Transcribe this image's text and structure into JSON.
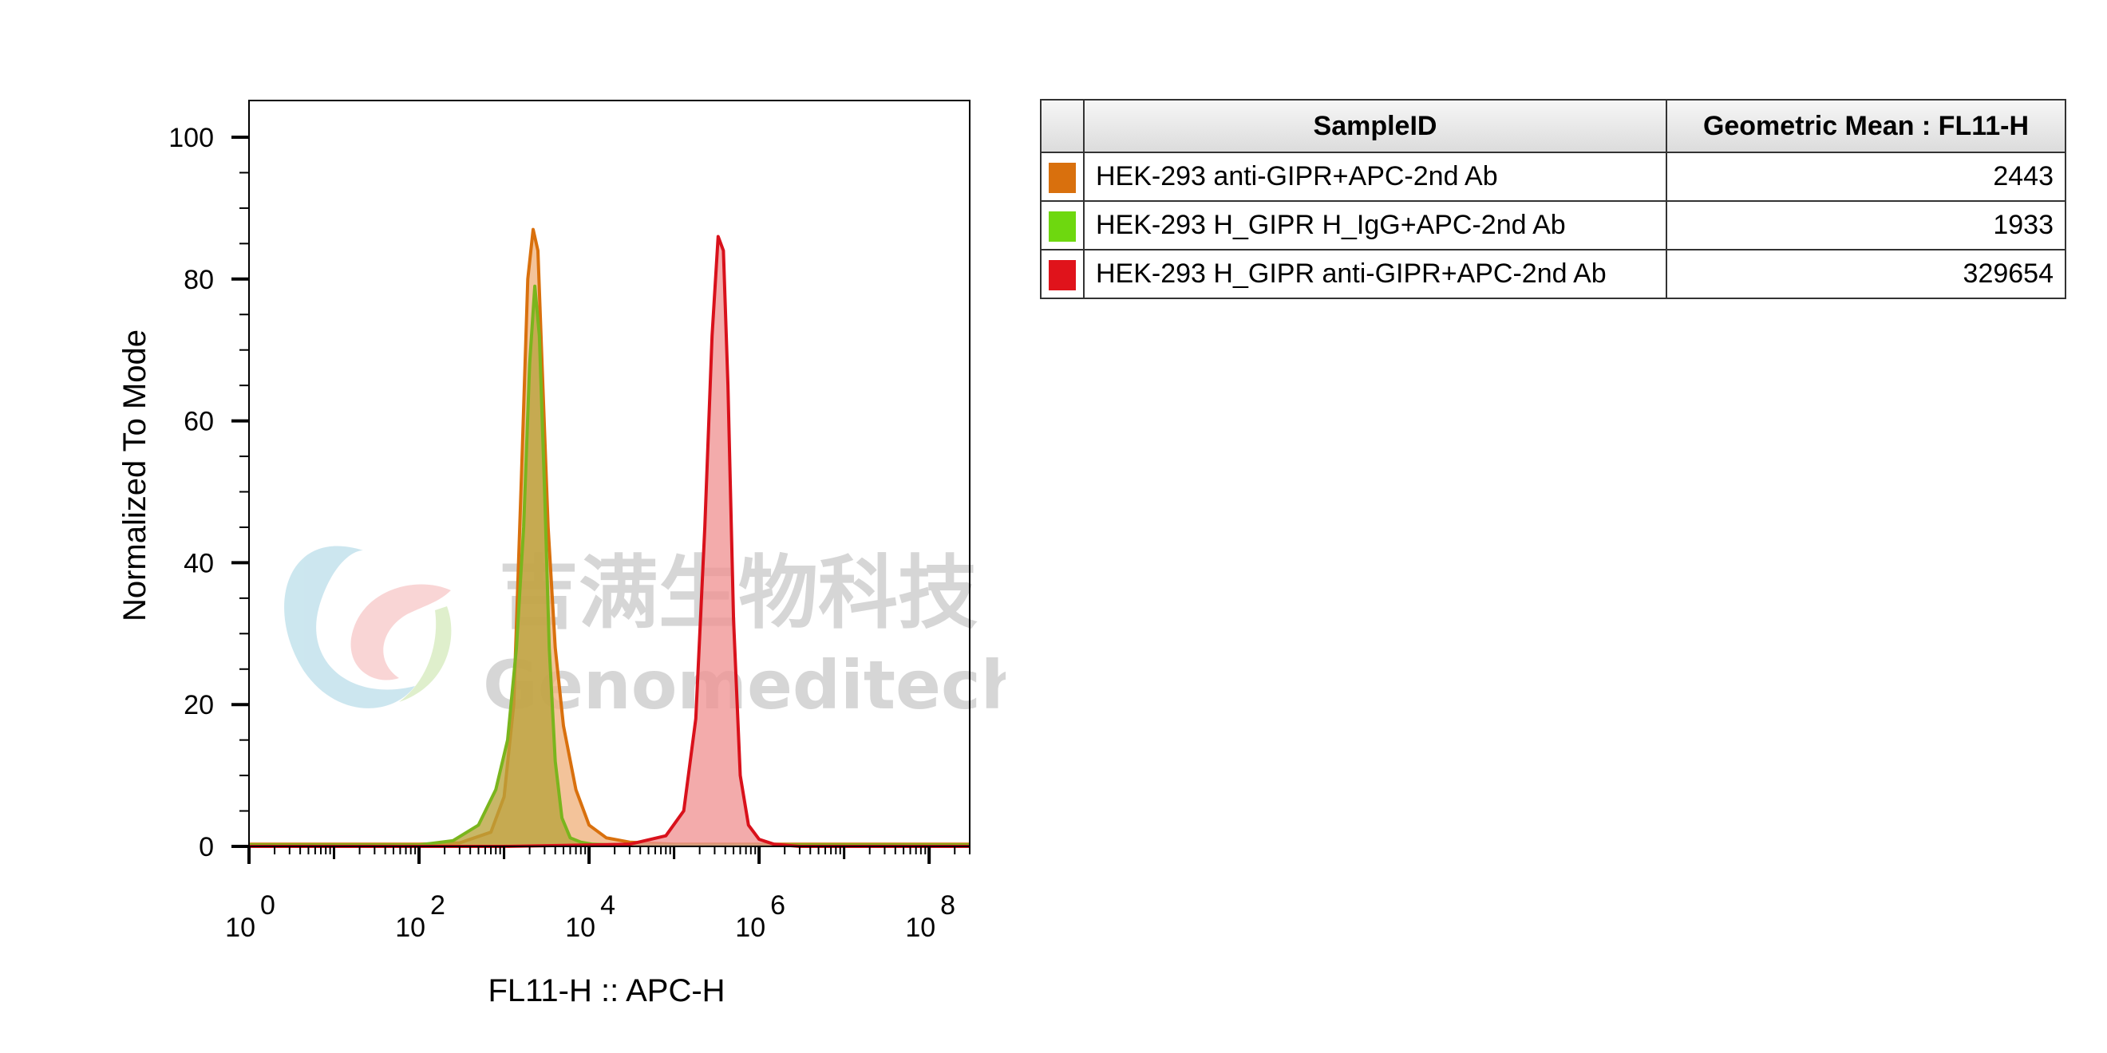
{
  "chart_data": {
    "type": "area",
    "xlabel": "FL11-H :: APC-H",
    "ylabel": "Normalized To Mode",
    "x_scale": "log",
    "xlim": [
      1,
      300000000
    ],
    "ylim": [
      0,
      100
    ],
    "y_ticks": [
      "0",
      "20",
      "40",
      "60",
      "80",
      "100"
    ],
    "x_ticks": [
      {
        "base": "10",
        "exp": "0",
        "value": 1
      },
      {
        "base": "10",
        "exp": "2",
        "value": 100
      },
      {
        "base": "10",
        "exp": "4",
        "value": 10000
      },
      {
        "base": "10",
        "exp": "6",
        "value": 1000000
      },
      {
        "base": "10",
        "exp": "8",
        "value": 100000000
      }
    ],
    "series": [
      {
        "name": "HEK-293 anti-GIPR+APC-2nd Ab",
        "color": "#d9700d",
        "fill": "#f0b27d",
        "x": [
          1,
          100,
          300,
          700,
          1000,
          1300,
          1600,
          1900,
          2200,
          2500,
          2800,
          3300,
          4000,
          5000,
          7000,
          10000,
          16000,
          30000,
          100000,
          300000,
          1000000,
          3000000,
          10000000,
          100000000,
          300000000
        ],
        "y": [
          0.3,
          0.3,
          0.5,
          2,
          7,
          20,
          52,
          80,
          87,
          84,
          68,
          45,
          28,
          17,
          8,
          3,
          1.2,
          0.6,
          0.3,
          0.3,
          0.3,
          0.3,
          0.3,
          0.3,
          0.3
        ]
      },
      {
        "name": "HEK-293 H_GIPR H_IgG+APC-2nd Ab",
        "color": "#7ab51d",
        "fill": "#b8a33c",
        "x": [
          1,
          100,
          250,
          500,
          800,
          1100,
          1400,
          1700,
          2000,
          2300,
          2600,
          3000,
          3400,
          4000,
          4800,
          6000,
          8000,
          11000,
          20000,
          100000,
          1000000,
          100000000,
          300000000
        ],
        "y": [
          0.2,
          0.2,
          0.8,
          3,
          8,
          15,
          28,
          45,
          68,
          79,
          72,
          50,
          28,
          12,
          4,
          1.2,
          0.6,
          0.3,
          0.2,
          0.2,
          0.2,
          0.2,
          0.2
        ]
      },
      {
        "name": "HEK-293 H_GIPR anti-GIPR+APC-2nd Ab",
        "color": "#d9111b",
        "fill": "#f09393",
        "x": [
          1,
          1000,
          30000,
          80000,
          130000,
          180000,
          230000,
          280000,
          330000,
          380000,
          430000,
          500000,
          600000,
          750000,
          1000000,
          1500000,
          3000000,
          300000000
        ],
        "y": [
          0,
          0,
          0.3,
          1.5,
          5,
          18,
          45,
          72,
          86,
          84,
          65,
          32,
          10,
          3,
          1,
          0.3,
          0,
          0
        ]
      }
    ]
  },
  "table": {
    "headers": {
      "sample": "SampleID",
      "value": "Geometric Mean : FL11-H"
    },
    "rows": [
      {
        "color": "#d9700d",
        "sample": "HEK-293 anti-GIPR+APC-2nd Ab",
        "value": "2443"
      },
      {
        "color": "#6ed80f",
        "sample": "HEK-293 H_GIPR H_IgG+APC-2nd Ab",
        "value": "1933"
      },
      {
        "color": "#e0131b",
        "sample": "HEK-293 H_GIPR anti-GIPR+APC-2nd Ab",
        "value": "329654"
      }
    ]
  },
  "watermark": {
    "cn": "吉满生物科技",
    "en": "Genomeditech"
  }
}
